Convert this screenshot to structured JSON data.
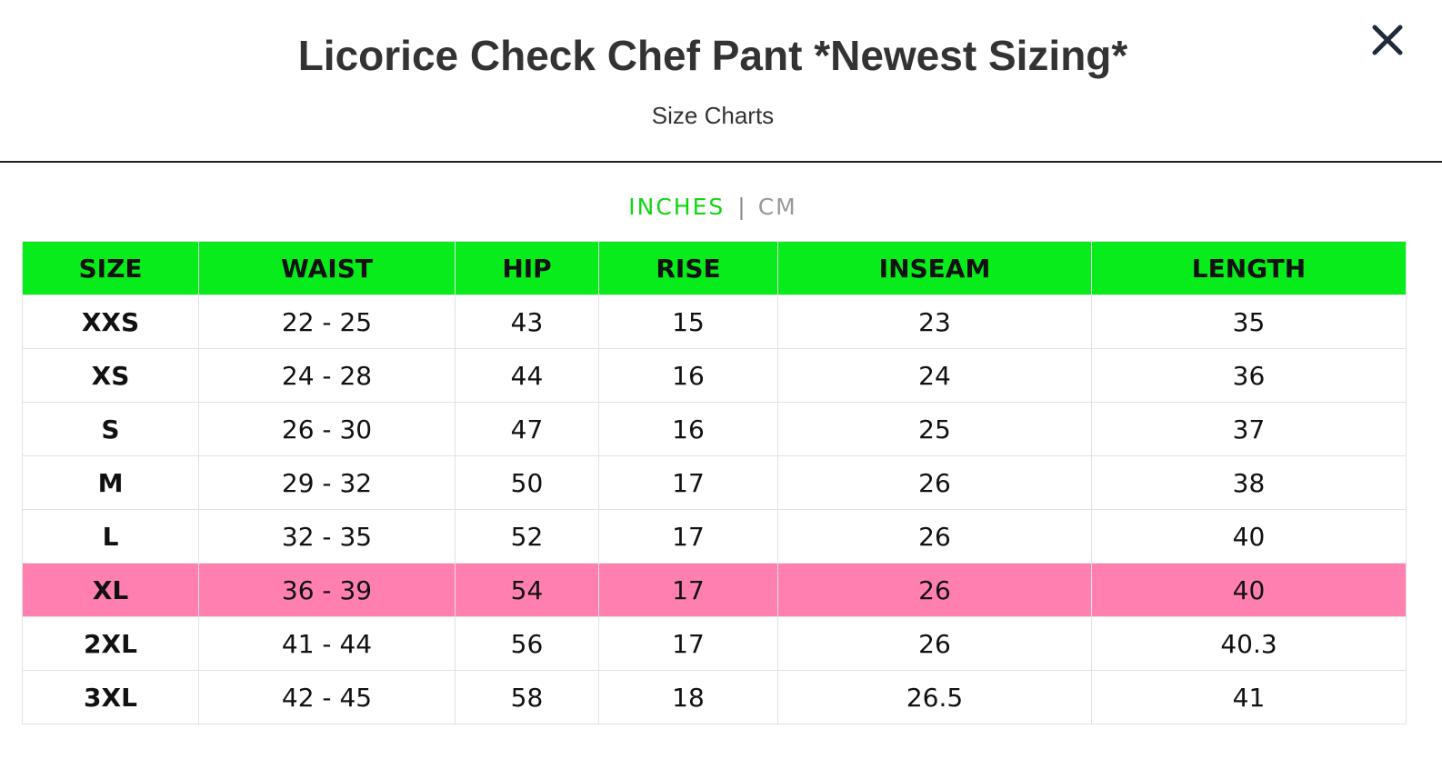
{
  "header": {
    "title": "Licorice Check Chef Pant *Newest Sizing*",
    "subtitle": "Size Charts",
    "close_icon": "close-icon"
  },
  "units": {
    "active": "INCHES",
    "separator": "|",
    "inactive": "CM",
    "active_color": "#10d610",
    "inactive_color": "#999999"
  },
  "table": {
    "header_color": "#08ec1c",
    "highlight_color": "#ff80b0",
    "highlighted_size": "XL",
    "columns": [
      "SIZE",
      "WAIST",
      "HIP",
      "RISE",
      "INSEAM",
      "LENGTH"
    ],
    "rows": [
      [
        "XXS",
        "22 - 25",
        "43",
        "15",
        "23",
        "35"
      ],
      [
        "XS",
        "24 - 28",
        "44",
        "16",
        "24",
        "36"
      ],
      [
        "S",
        "26 - 30",
        "47",
        "16",
        "25",
        "37"
      ],
      [
        "M",
        "29 - 32",
        "50",
        "17",
        "26",
        "38"
      ],
      [
        "L",
        "32 - 35",
        "52",
        "17",
        "26",
        "40"
      ],
      [
        "XL",
        "36 - 39",
        "54",
        "17",
        "26",
        "40"
      ],
      [
        "2XL",
        "41 - 44",
        "56",
        "17",
        "26",
        "40.3"
      ],
      [
        "3XL",
        "42 - 45",
        "58",
        "18",
        "26.5",
        "41"
      ]
    ]
  }
}
